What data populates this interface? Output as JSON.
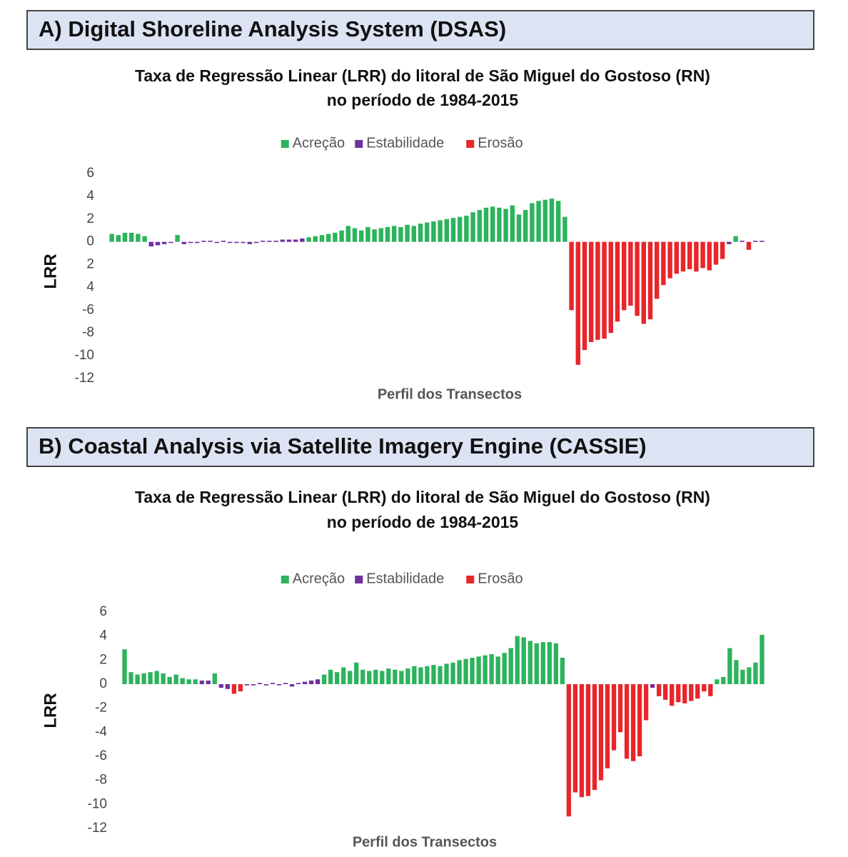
{
  "headers": [
    "A) Digital Shoreline Analysis System (DSAS)",
    "B) Coastal Analysis via Satellite Imagery Engine (CASSIE)"
  ],
  "chart_data": [
    {
      "type": "bar",
      "title": [
        "Taxa de Regressão Linear (LRR) do litoral de São Miguel do Gostoso (RN)",
        "no período de 1984-2015"
      ],
      "y_label": "LRR",
      "x_label": "Perfil dos Transectos",
      "ylim": [
        -12,
        6
      ],
      "yticks": [
        6,
        4,
        2,
        0,
        {
          "value": -2,
          "label": "2"
        },
        {
          "value": -4,
          "label": "4"
        },
        -6,
        -8,
        -10,
        -12
      ],
      "series": [
        {
          "name": "Acreção",
          "color": "#2db35d",
          "values": [
            0.7,
            0.6,
            0.8,
            0.8,
            0.7,
            0.5,
            null,
            null,
            null,
            null,
            0.6,
            null,
            null,
            null,
            null,
            null,
            null,
            null,
            null,
            null,
            null,
            null,
            null,
            null,
            null,
            null,
            null,
            null,
            null,
            null,
            0.4,
            0.5,
            0.6,
            0.7,
            0.8,
            1.0,
            1.4,
            1.2,
            1.0,
            1.3,
            1.1,
            1.2,
            1.3,
            1.4,
            1.3,
            1.5,
            1.4,
            1.6,
            1.7,
            1.8,
            1.9,
            2.0,
            2.1,
            2.2,
            2.3,
            2.6,
            2.8,
            3.0,
            3.1,
            3.0,
            2.9,
            3.2,
            2.4,
            2.8,
            3.4,
            3.6,
            3.7,
            3.8,
            3.6,
            2.2,
            null,
            null,
            null,
            null,
            null,
            null,
            null,
            null,
            null,
            null,
            null,
            null,
            null,
            null,
            null,
            null,
            null,
            null,
            null,
            null,
            null,
            null,
            null,
            null,
            null,
            0.5,
            null,
            null,
            null,
            null
          ]
        },
        {
          "name": "Estabilidade",
          "color": "#7030a0",
          "values": [
            null,
            null,
            null,
            null,
            null,
            null,
            -0.4,
            -0.3,
            -0.2,
            -0.1,
            null,
            -0.2,
            -0.1,
            -0.1,
            0.1,
            0.1,
            -0.1,
            0.1,
            -0.1,
            -0.1,
            -0.1,
            -0.2,
            -0.1,
            0.1,
            0.1,
            0.1,
            0.2,
            0.2,
            0.2,
            0.3,
            null,
            null,
            null,
            null,
            null,
            null,
            null,
            null,
            null,
            null,
            null,
            null,
            null,
            null,
            null,
            null,
            null,
            null,
            null,
            null,
            null,
            null,
            null,
            null,
            null,
            null,
            null,
            null,
            null,
            null,
            null,
            null,
            null,
            null,
            null,
            null,
            null,
            null,
            null,
            null,
            null,
            null,
            null,
            null,
            null,
            null,
            null,
            null,
            null,
            null,
            null,
            null,
            null,
            null,
            null,
            null,
            null,
            null,
            null,
            null,
            null,
            null,
            null,
            null,
            -0.2,
            null,
            0.1,
            null,
            0.1,
            0.1
          ]
        },
        {
          "name": "Erosão",
          "color": "#e8262a",
          "values": [
            null,
            null,
            null,
            null,
            null,
            null,
            null,
            null,
            null,
            null,
            null,
            null,
            null,
            null,
            null,
            null,
            null,
            null,
            null,
            null,
            null,
            null,
            null,
            null,
            null,
            null,
            null,
            null,
            null,
            null,
            null,
            null,
            null,
            null,
            null,
            null,
            null,
            null,
            null,
            null,
            null,
            null,
            null,
            null,
            null,
            null,
            null,
            null,
            null,
            null,
            null,
            null,
            null,
            null,
            null,
            null,
            null,
            null,
            null,
            null,
            null,
            null,
            null,
            null,
            null,
            null,
            null,
            null,
            null,
            null,
            -6,
            -10.8,
            -9.5,
            -8.8,
            -8.6,
            -8.5,
            -8.0,
            -7.0,
            -6.0,
            -5.6,
            -6.5,
            -7.2,
            -6.8,
            -5.0,
            -3.8,
            -3.2,
            -2.8,
            -2.6,
            -2.4,
            -2.6,
            -2.3,
            -2.5,
            -2.0,
            -1.5,
            null,
            null,
            null,
            -0.7,
            null,
            null
          ]
        }
      ]
    },
    {
      "type": "bar",
      "title": [
        "Taxa de Regressão Linear (LRR) do litoral de São Miguel do Gostoso (RN)",
        "no período de 1984-2015"
      ],
      "y_label": "LRR",
      "x_label": "Perfil dos Transectos",
      "ylim": [
        -12,
        6
      ],
      "yticks": [
        6,
        4,
        2,
        0,
        -2,
        -4,
        -6,
        -8,
        -10,
        -12
      ],
      "series": [
        {
          "name": "Acreção",
          "color": "#2db35d",
          "values": [
            2.9,
            1.0,
            0.8,
            0.9,
            1.0,
            1.1,
            0.9,
            0.6,
            0.8,
            0.5,
            0.4,
            0.4,
            null,
            null,
            0.9,
            null,
            null,
            null,
            null,
            null,
            null,
            null,
            null,
            null,
            null,
            null,
            null,
            null,
            null,
            null,
            null,
            0.8,
            1.2,
            1.0,
            1.4,
            1.1,
            1.8,
            1.2,
            1.1,
            1.2,
            1.1,
            1.3,
            1.2,
            1.1,
            1.3,
            1.5,
            1.4,
            1.5,
            1.6,
            1.5,
            1.7,
            1.8,
            2.0,
            2.1,
            2.2,
            2.3,
            2.4,
            2.5,
            2.3,
            2.6,
            3.0,
            4.0,
            3.9,
            3.6,
            3.4,
            3.5,
            3.5,
            3.4,
            2.2,
            null,
            null,
            null,
            null,
            null,
            null,
            null,
            null,
            null,
            null,
            null,
            null,
            null,
            null,
            null,
            null,
            null,
            null,
            null,
            null,
            null,
            null,
            null,
            0.4,
            0.6,
            3.0,
            2.0,
            1.2,
            1.4,
            1.8,
            4.1
          ]
        },
        {
          "name": "Estabilidade",
          "color": "#7030a0",
          "values": [
            null,
            null,
            null,
            null,
            null,
            null,
            null,
            null,
            null,
            null,
            null,
            null,
            0.3,
            0.3,
            null,
            -0.3,
            -0.4,
            null,
            null,
            -0.1,
            -0.1,
            0.1,
            -0.1,
            0.1,
            -0.1,
            0.1,
            -0.2,
            0.1,
            0.2,
            0.3,
            0.4,
            null,
            null,
            null,
            null,
            null,
            null,
            null,
            null,
            null,
            null,
            null,
            null,
            null,
            null,
            null,
            null,
            null,
            null,
            null,
            null,
            null,
            null,
            null,
            null,
            null,
            null,
            null,
            null,
            null,
            null,
            null,
            null,
            null,
            null,
            null,
            null,
            null,
            null,
            null,
            null,
            null,
            null,
            null,
            null,
            null,
            null,
            null,
            null,
            null,
            null,
            null,
            -0.3,
            null,
            null,
            null,
            null,
            null,
            null,
            null,
            null,
            null,
            null,
            null,
            null,
            null,
            null,
            null,
            null,
            null
          ]
        },
        {
          "name": "Erosão",
          "color": "#e8262a",
          "values": [
            null,
            null,
            null,
            null,
            null,
            null,
            null,
            null,
            null,
            null,
            null,
            null,
            null,
            null,
            null,
            null,
            null,
            -0.8,
            -0.6,
            null,
            null,
            null,
            null,
            null,
            null,
            null,
            null,
            null,
            null,
            null,
            null,
            null,
            null,
            null,
            null,
            null,
            null,
            null,
            null,
            null,
            null,
            null,
            null,
            null,
            null,
            null,
            null,
            null,
            null,
            null,
            null,
            null,
            null,
            null,
            null,
            null,
            null,
            null,
            null,
            null,
            null,
            null,
            null,
            null,
            null,
            null,
            null,
            null,
            null,
            -11.0,
            -9.0,
            -9.4,
            -9.3,
            -8.8,
            -8.0,
            -7.0,
            -5.5,
            -4.0,
            -6.2,
            -6.4,
            -6.0,
            -3.0,
            null,
            -1.0,
            -1.3,
            -1.8,
            -1.5,
            -1.6,
            -1.4,
            -1.2,
            -0.6,
            -1.0,
            null,
            null,
            null,
            null,
            null,
            null,
            null,
            null
          ]
        }
      ]
    }
  ]
}
